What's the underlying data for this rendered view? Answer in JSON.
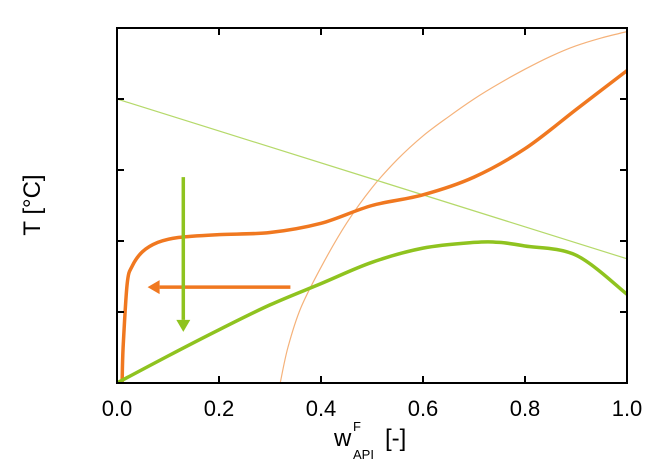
{
  "chart_data": {
    "type": "line",
    "xlabel": {
      "main": "w",
      "superscript": "F",
      "subscript": "API",
      "suffix": "[-]"
    },
    "ylabel": "T [°C]",
    "xlim": [
      0,
      1
    ],
    "ylim": [
      0,
      5
    ],
    "xticks": [
      "0.0",
      "0.2",
      "0.4",
      "0.6",
      "0.8",
      "1.0"
    ],
    "yticks": [
      0,
      1,
      2,
      3,
      4,
      5
    ],
    "grid": false,
    "colors": {
      "orange": "#f07820",
      "light_orange": "#f5b27a",
      "green": "#8fc31f",
      "light_green": "#b5d96a"
    },
    "series": [
      {
        "style": "thin-light-orange",
        "x": [
          0.32,
          0.335,
          0.36,
          0.4,
          0.45,
          0.5,
          0.55,
          0.6,
          0.65,
          0.7,
          0.75,
          0.8,
          0.85,
          0.9,
          0.95,
          1.0
        ],
        "y": [
          0.0,
          0.5,
          1.05,
          1.63,
          2.25,
          2.75,
          3.15,
          3.48,
          3.75,
          4.0,
          4.22,
          4.42,
          4.6,
          4.75,
          4.86,
          4.95
        ]
      },
      {
        "style": "thin-light-green",
        "x": [
          0.0,
          1.0
        ],
        "y": [
          4.0,
          1.75
        ]
      },
      {
        "style": "thick-orange",
        "x": [
          0.01,
          0.012,
          0.02,
          0.03,
          0.05,
          0.08,
          0.12,
          0.2,
          0.3,
          0.4,
          0.5,
          0.6,
          0.7,
          0.8,
          0.9,
          1.0
        ],
        "y": [
          0.0,
          0.5,
          1.4,
          1.65,
          1.85,
          1.98,
          2.05,
          2.09,
          2.12,
          2.25,
          2.5,
          2.65,
          2.9,
          3.3,
          3.85,
          4.4
        ]
      },
      {
        "style": "thick-green",
        "x": [
          0.0,
          0.1,
          0.2,
          0.3,
          0.4,
          0.5,
          0.6,
          0.7,
          0.75,
          0.8,
          0.9,
          1.0
        ],
        "y": [
          0.0,
          0.38,
          0.75,
          1.1,
          1.4,
          1.7,
          1.9,
          1.98,
          1.98,
          1.93,
          1.8,
          1.25
        ]
      }
    ],
    "arrows": [
      {
        "color": "orange",
        "from": [
          0.34,
          1.35
        ],
        "to": [
          0.06,
          1.35
        ]
      },
      {
        "color": "green",
        "from": [
          0.13,
          2.9
        ],
        "to": [
          0.13,
          0.72
        ]
      }
    ]
  }
}
